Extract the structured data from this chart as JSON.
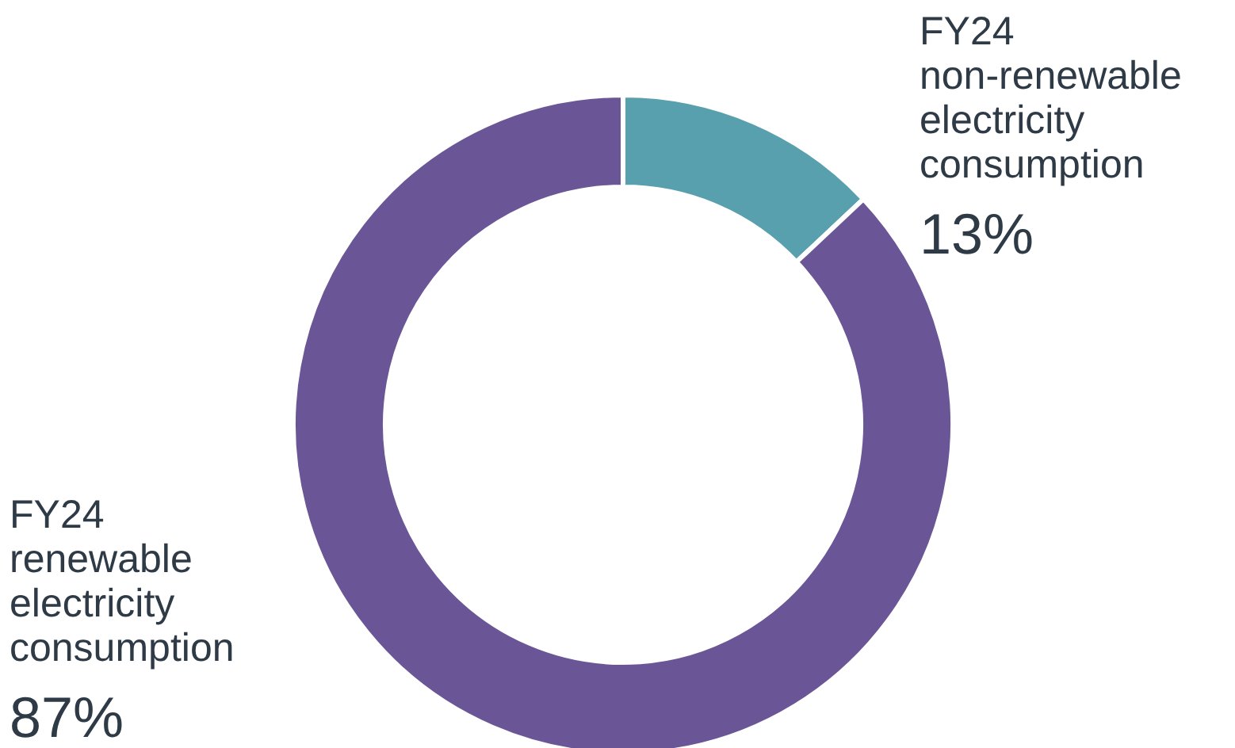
{
  "chart_data": {
    "type": "donut",
    "categories": [
      "FY24 non-renewable electricity consumption",
      "FY24 renewable electricity consumption"
    ],
    "values": [
      13,
      87
    ],
    "colors": [
      "#58a0ae",
      "#6a5696"
    ],
    "data_labels": true,
    "value_labels": [
      "13%",
      "87%"
    ],
    "legend": false
  }
}
